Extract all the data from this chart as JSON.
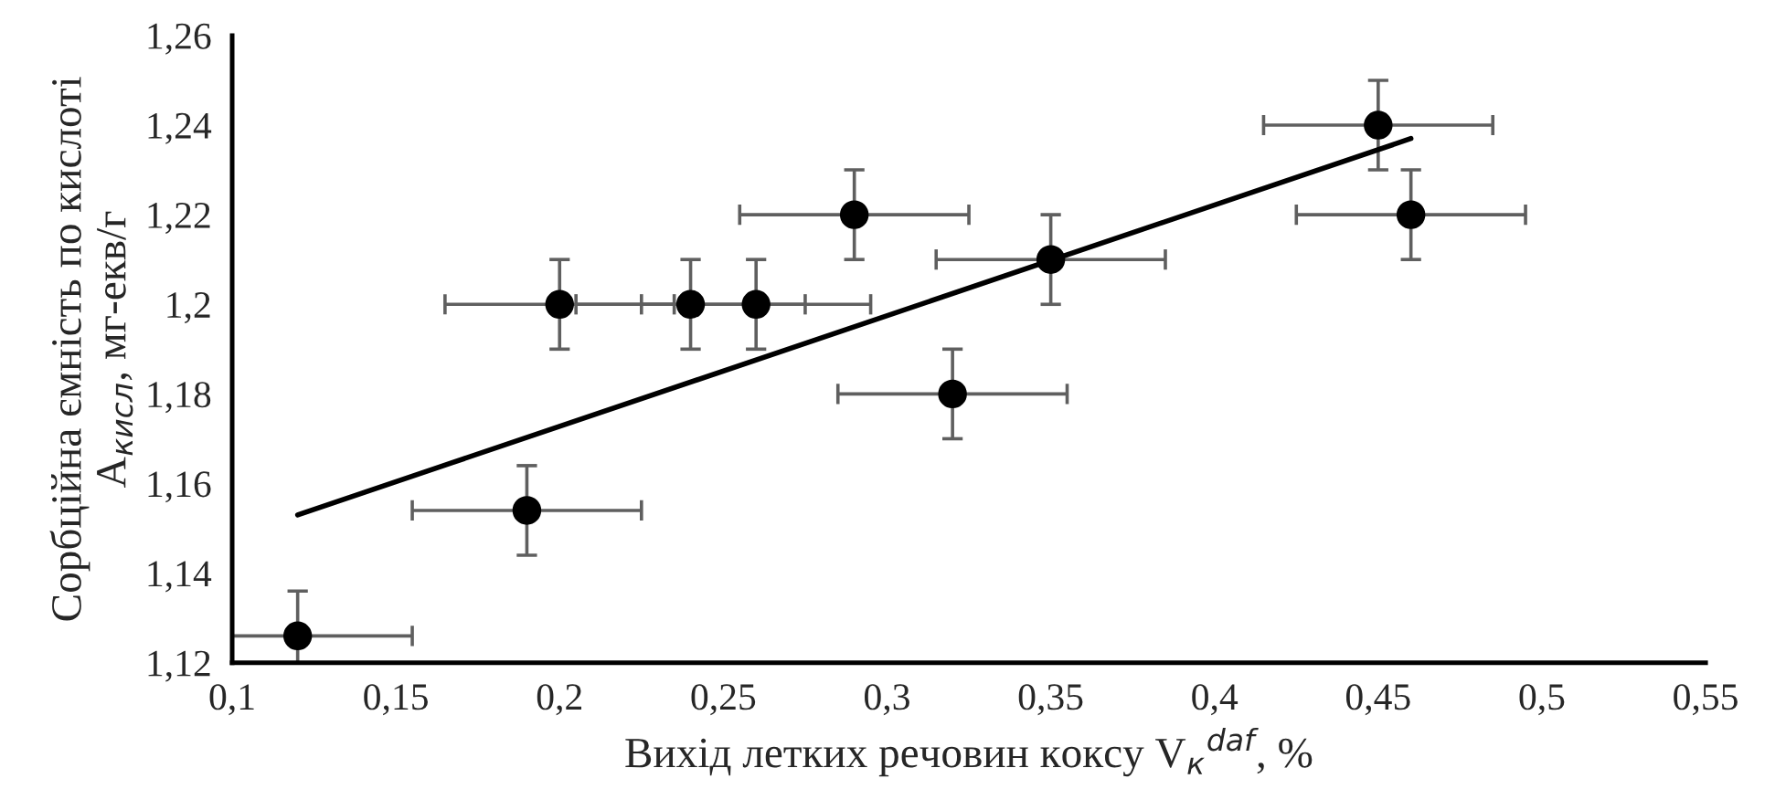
{
  "chart_data": {
    "type": "scatter",
    "xlabel": "Вихід летких речовин коксу V$_{к}$$^{daf}$, %",
    "ylabel": "Сорбційна ємність по кислоті\nA$_{кисл}$, мг-екв/г",
    "series": [
      {
        "color": "#000000",
        "marker": "circle",
        "x": [
          0.12,
          0.19,
          0.2,
          0.24,
          0.26,
          0.29,
          0.32,
          0.35,
          0.45,
          0.46
        ],
        "values": [
          1.126,
          1.154,
          1.2,
          1.2,
          1.2,
          1.22,
          1.18,
          1.21,
          1.24,
          1.22
        ],
        "errors": [
          0.01,
          0.01,
          0.01,
          0.01,
          0.01,
          0.01,
          0.01,
          0.01,
          0.01,
          0.01
        ],
        "xerrors": [
          [
            0.1,
            0.155
          ],
          0.035,
          0.035,
          0.035,
          0.035,
          0.035,
          0.035,
          0.035,
          0.035,
          0.035
        ]
      },
      {
        "type": "line",
        "color": "#000000",
        "line_style": "solid",
        "x": [
          0.12,
          0.46
        ],
        "values": [
          1.153,
          1.237
        ]
      }
    ],
    "xlim": [
      0.1,
      0.55
    ],
    "xticks": [
      {
        "value": 0.1,
        "label": "0,1"
      },
      {
        "value": 0.15,
        "label": "0,15"
      },
      {
        "value": 0.2,
        "label": "0,2"
      },
      {
        "value": 0.25,
        "label": "0,25"
      },
      {
        "value": 0.3,
        "label": "0,3"
      },
      {
        "value": 0.35,
        "label": "0,35"
      },
      {
        "value": 0.4,
        "label": "0,4"
      },
      {
        "value": 0.45,
        "label": "0,45"
      },
      {
        "value": 0.5,
        "label": "0,5"
      },
      {
        "value": 0.55,
        "label": "0,55"
      }
    ],
    "ylim": [
      1.12,
      1.26
    ],
    "yticks": [
      {
        "value": 1.12,
        "label": "1,12"
      },
      {
        "value": 1.14,
        "label": "1,14"
      },
      {
        "value": 1.16,
        "label": "1,16"
      },
      {
        "value": 1.18,
        "label": "1,18"
      },
      {
        "value": 1.2,
        "label": "1,2"
      },
      {
        "value": 1.22,
        "label": "1,22"
      },
      {
        "value": 1.24,
        "label": "1,24"
      },
      {
        "value": 1.26,
        "label": "1,26"
      }
    ],
    "grid": false,
    "legend": false
  }
}
